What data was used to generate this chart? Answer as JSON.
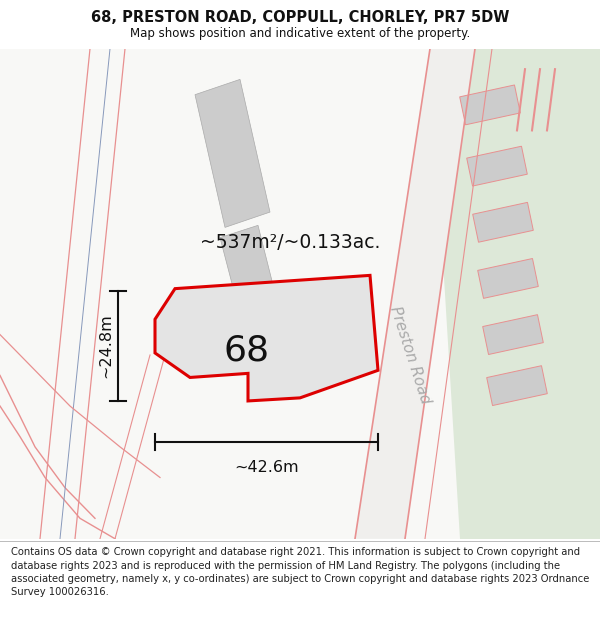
{
  "title": "68, PRESTON ROAD, COPPULL, CHORLEY, PR7 5DW",
  "subtitle": "Map shows position and indicative extent of the property.",
  "footer": "Contains OS data © Crown copyright and database right 2021. This information is subject to Crown copyright and database rights 2023 and is reproduced with the permission of HM Land Registry. The polygons (including the associated geometry, namely x, y co-ordinates) are subject to Crown copyright and database rights 2023 Ordnance Survey 100026316.",
  "area_label": "~537m²/~0.133ac.",
  "width_label": "~42.6m",
  "height_label": "~24.8m",
  "plot_number": "68",
  "road_label": "Preston Road",
  "bg_color": "#ffffff",
  "plot_fill": "#e4e4e4",
  "plot_border": "#dd0000",
  "road_lines_color": "#e89090",
  "building_fill": "#cccccc",
  "green_area_color": "#dde8d8",
  "dim_line_color": "#111111",
  "title_fontsize": 10.5,
  "subtitle_fontsize": 8.5,
  "footer_fontsize": 7.2,
  "number_fontsize": 26,
  "road_label_fontsize": 11
}
